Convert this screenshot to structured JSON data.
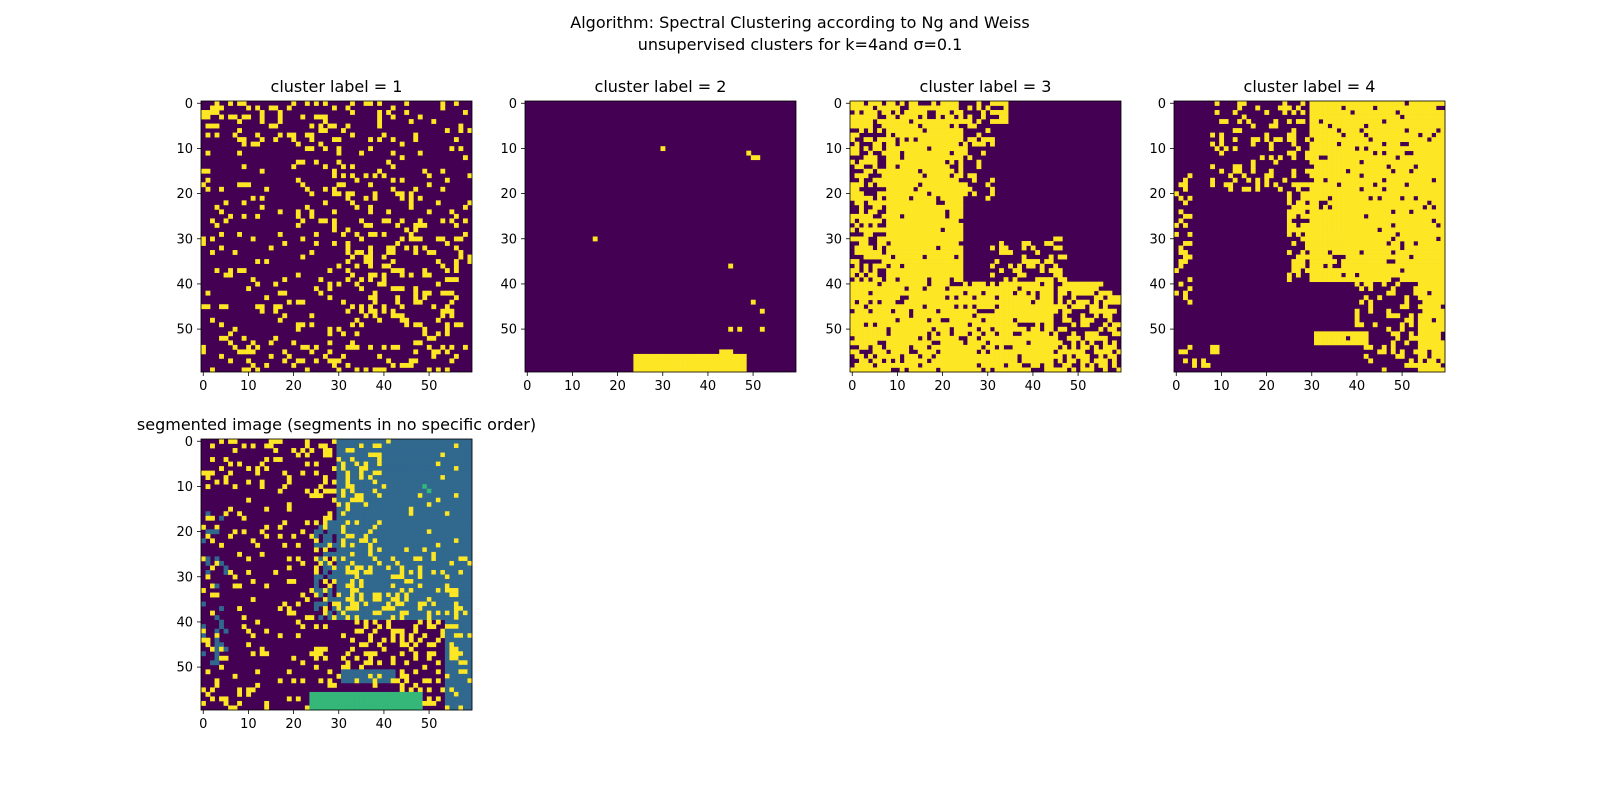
{
  "figure": {
    "title_line1": "Algorithm: Spectral Clustering according to Ng and Weiss",
    "title_line2": "unsupervised clusters for k=4and σ=0.1"
  },
  "colors": {
    "background_label": "#440154",
    "cluster_yellow": "#fde725",
    "cluster_teal": "#31688e",
    "cluster_cyan": "#35b779"
  },
  "chart_data": [
    {
      "type": "heatmap",
      "title": "cluster label = 1",
      "grid_size": [
        60,
        60
      ],
      "xlim": [
        -0.5,
        59.5
      ],
      "ylim": [
        59.5,
        -0.5
      ],
      "xticks": [
        0,
        10,
        20,
        30,
        40,
        50
      ],
      "yticks": [
        0,
        10,
        20,
        30,
        40,
        50
      ],
      "description_values": "binary mask: sparse scattered yellow pixels (value 1) on purple (value 0)",
      "seed": 11,
      "density": "sparse"
    },
    {
      "type": "heatmap",
      "title": "cluster label = 2",
      "grid_size": [
        60,
        60
      ],
      "xlim": [
        -0.5,
        59.5
      ],
      "ylim": [
        59.5,
        -0.5
      ],
      "xticks": [
        0,
        10,
        20,
        30,
        40,
        50
      ],
      "yticks": [
        0,
        10,
        20,
        30,
        40,
        50
      ],
      "seed": 22,
      "density": "bottom-band"
    },
    {
      "type": "heatmap",
      "title": "cluster label = 3",
      "grid_size": [
        60,
        60
      ],
      "xlim": [
        -0.5,
        59.5
      ],
      "ylim": [
        59.5,
        -0.5
      ],
      "xticks": [
        0,
        10,
        20,
        30,
        40,
        50
      ],
      "yticks": [
        0,
        10,
        20,
        30,
        40,
        50
      ],
      "seed": 33,
      "density": "left-large"
    },
    {
      "type": "heatmap",
      "title": "cluster label = 4",
      "grid_size": [
        60,
        60
      ],
      "xlim": [
        -0.5,
        59.5
      ],
      "ylim": [
        59.5,
        -0.5
      ],
      "xticks": [
        0,
        10,
        20,
        30,
        40,
        50
      ],
      "yticks": [
        0,
        10,
        20,
        30,
        40,
        50
      ],
      "seed": 44,
      "density": "right-large"
    },
    {
      "type": "heatmap",
      "title": "segmented image (segments in no specific order)",
      "grid_size": [
        60,
        60
      ],
      "xlim": [
        -0.5,
        59.5
      ],
      "ylim": [
        59.5,
        -0.5
      ],
      "xticks": [
        0,
        10,
        20,
        30,
        40,
        50
      ],
      "yticks": [
        0,
        10,
        20,
        30,
        40,
        50
      ],
      "seed": 55,
      "density": "combined"
    }
  ]
}
